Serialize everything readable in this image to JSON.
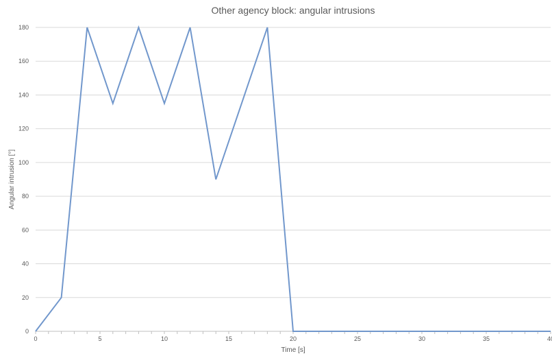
{
  "chart_data": {
    "type": "line",
    "title": "Other agency block: angular intrusions",
    "xlabel": "Time [s]",
    "ylabel": "Angular intrusion [°]",
    "xlim": [
      0,
      40
    ],
    "ylim": [
      0,
      180
    ],
    "xticks": [
      0,
      5,
      10,
      15,
      20,
      25,
      30,
      35,
      40
    ],
    "yticks": [
      0,
      20,
      40,
      60,
      80,
      100,
      120,
      140,
      160,
      180
    ],
    "grid": "horizontal",
    "legend": "none",
    "series": [
      {
        "color": "#7197cc",
        "x": [
          0,
          2,
          4,
          6,
          8,
          10,
          12,
          14,
          16,
          18,
          20,
          22,
          24,
          26,
          28,
          30,
          32,
          34,
          36,
          38,
          40
        ],
        "y": [
          0,
          20,
          180,
          135,
          180,
          135,
          180,
          90,
          135,
          180,
          0,
          0,
          0,
          0,
          0,
          0,
          0,
          0,
          0,
          0,
          0
        ]
      }
    ]
  }
}
